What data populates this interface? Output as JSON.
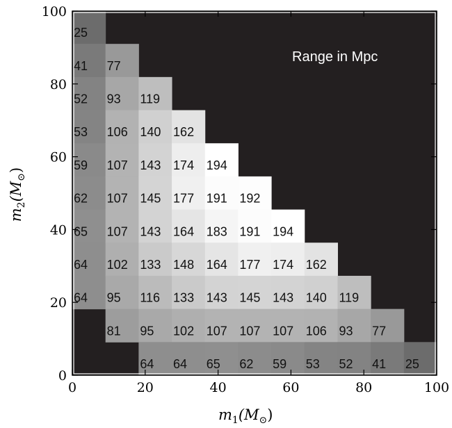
{
  "chart_data": {
    "type": "heatmap",
    "title": "",
    "annotation": "Range in Mpc",
    "xlabel": "m_1(M_⊙)",
    "ylabel": "m_2(M_⊙)",
    "xlabel_main": "m",
    "xlabel_sub": "1",
    "xlabel_unit": "(M",
    "xlabel_sun": "⊙",
    "xlabel_close": ")",
    "ylabel_main": "m",
    "ylabel_sub": "2",
    "ylabel_unit": "(M",
    "ylabel_sun": "⊙",
    "ylabel_close": ")",
    "xlim": [
      0,
      100
    ],
    "ylim": [
      0,
      100
    ],
    "x_ticks": [
      0,
      20,
      40,
      60,
      80,
      100
    ],
    "y_ticks": [
      0,
      20,
      40,
      60,
      80,
      100
    ],
    "x_tick_labels": [
      "0",
      "20",
      "40",
      "60",
      "80",
      "100"
    ],
    "y_tick_labels": [
      "0",
      "20",
      "40",
      "60",
      "80",
      "100"
    ],
    "cell_size": 9.1,
    "missing_color": "#231f20",
    "cells": [
      {
        "col": 0,
        "row": 8,
        "value": 25
      },
      {
        "col": 0,
        "row": 7,
        "value": 41
      },
      {
        "col": 0,
        "row": 6,
        "value": 52
      },
      {
        "col": 0,
        "row": 5,
        "value": 53
      },
      {
        "col": 0,
        "row": 4,
        "value": 59
      },
      {
        "col": 0,
        "row": 3,
        "value": 62
      },
      {
        "col": 0,
        "row": 2,
        "value": 65
      },
      {
        "col": 0,
        "row": 1,
        "value": 64
      },
      {
        "col": 0,
        "row": 0,
        "value": 64
      },
      {
        "col": 1,
        "row": 7,
        "value": 77
      },
      {
        "col": 1,
        "row": 6,
        "value": 93
      },
      {
        "col": 1,
        "row": 5,
        "value": 106
      },
      {
        "col": 1,
        "row": 4,
        "value": 107
      },
      {
        "col": 1,
        "row": 3,
        "value": 107
      },
      {
        "col": 1,
        "row": 2,
        "value": 107
      },
      {
        "col": 1,
        "row": 1,
        "value": 102
      },
      {
        "col": 1,
        "row": 0,
        "value": 95
      },
      {
        "col": 1,
        "row": -1,
        "value": 81
      },
      {
        "col": 2,
        "row": 6,
        "value": 119
      },
      {
        "col": 2,
        "row": 5,
        "value": 140
      },
      {
        "col": 2,
        "row": 4,
        "value": 143
      },
      {
        "col": 2,
        "row": 3,
        "value": 145
      },
      {
        "col": 2,
        "row": 2,
        "value": 143
      },
      {
        "col": 2,
        "row": 1,
        "value": 133
      },
      {
        "col": 2,
        "row": 0,
        "value": 116
      },
      {
        "col": 2,
        "row": -1,
        "value": 95
      },
      {
        "col": 2,
        "row": -2,
        "value": 64
      },
      {
        "col": 3,
        "row": 5,
        "value": 162
      },
      {
        "col": 3,
        "row": 4,
        "value": 174
      },
      {
        "col": 3,
        "row": 3,
        "value": 177
      },
      {
        "col": 3,
        "row": 2,
        "value": 164
      },
      {
        "col": 3,
        "row": 1,
        "value": 148
      },
      {
        "col": 3,
        "row": 0,
        "value": 133
      },
      {
        "col": 3,
        "row": -1,
        "value": 102
      },
      {
        "col": 3,
        "row": -2,
        "value": 64
      },
      {
        "col": 4,
        "row": 4,
        "value": 194
      },
      {
        "col": 4,
        "row": 3,
        "value": 191
      },
      {
        "col": 4,
        "row": 2,
        "value": 183
      },
      {
        "col": 4,
        "row": 1,
        "value": 164
      },
      {
        "col": 4,
        "row": 0,
        "value": 143
      },
      {
        "col": 4,
        "row": -1,
        "value": 107
      },
      {
        "col": 4,
        "row": -2,
        "value": 65
      },
      {
        "col": 5,
        "row": 3,
        "value": 192
      },
      {
        "col": 5,
        "row": 2,
        "value": 191
      },
      {
        "col": 5,
        "row": 1,
        "value": 177
      },
      {
        "col": 5,
        "row": 0,
        "value": 145
      },
      {
        "col": 5,
        "row": -1,
        "value": 107
      },
      {
        "col": 5,
        "row": -2,
        "value": 62
      },
      {
        "col": 6,
        "row": 2,
        "value": 194
      },
      {
        "col": 6,
        "row": 1,
        "value": 174
      },
      {
        "col": 6,
        "row": 0,
        "value": 143
      },
      {
        "col": 6,
        "row": -1,
        "value": 107
      },
      {
        "col": 6,
        "row": -2,
        "value": 59
      },
      {
        "col": 7,
        "row": 1,
        "value": 162
      },
      {
        "col": 7,
        "row": 0,
        "value": 140
      },
      {
        "col": 7,
        "row": -1,
        "value": 106
      },
      {
        "col": 7,
        "row": -2,
        "value": 53
      },
      {
        "col": 8,
        "row": 0,
        "value": 119
      },
      {
        "col": 8,
        "row": -1,
        "value": 93
      },
      {
        "col": 8,
        "row": -2,
        "value": 52
      },
      {
        "col": 9,
        "row": -1,
        "value": 77
      },
      {
        "col": 9,
        "row": -2,
        "value": 41
      },
      {
        "col": 10,
        "row": -2,
        "value": 25
      }
    ],
    "grid": false
  }
}
